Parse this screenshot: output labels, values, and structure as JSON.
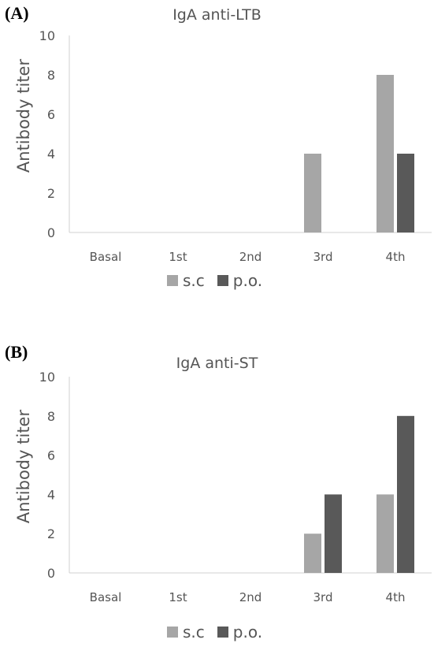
{
  "chart_data": [
    {
      "panel": "(A)",
      "type": "bar",
      "title": "IgA anti-LTB",
      "xlabel": "",
      "ylabel": "Antibody titer",
      "ylim": [
        0,
        10
      ],
      "yticks": [
        0,
        2,
        4,
        6,
        8,
        10
      ],
      "categories": [
        "Basal",
        "1st",
        "2nd",
        "3rd",
        "4th"
      ],
      "series": [
        {
          "name": "s.c",
          "color": "#a6a6a6",
          "values": [
            0,
            0,
            0,
            4,
            8
          ]
        },
        {
          "name": "p.o.",
          "color": "#595959",
          "values": [
            0,
            0,
            0,
            0,
            4
          ]
        }
      ],
      "legend_position": "bottom",
      "grid": false
    },
    {
      "panel": "(B)",
      "type": "bar",
      "title": "IgA anti-ST",
      "xlabel": "",
      "ylabel": "Antibody titer",
      "ylim": [
        0,
        10
      ],
      "yticks": [
        0,
        2,
        4,
        6,
        8,
        10
      ],
      "categories": [
        "Basal",
        "1st",
        "2nd",
        "3rd",
        "4th"
      ],
      "series": [
        {
          "name": "s.c",
          "color": "#a6a6a6",
          "values": [
            0,
            0,
            0,
            2,
            4
          ]
        },
        {
          "name": "p.o.",
          "color": "#595959",
          "values": [
            0,
            0,
            0,
            4,
            8
          ]
        }
      ],
      "legend_position": "bottom",
      "grid": false
    }
  ]
}
